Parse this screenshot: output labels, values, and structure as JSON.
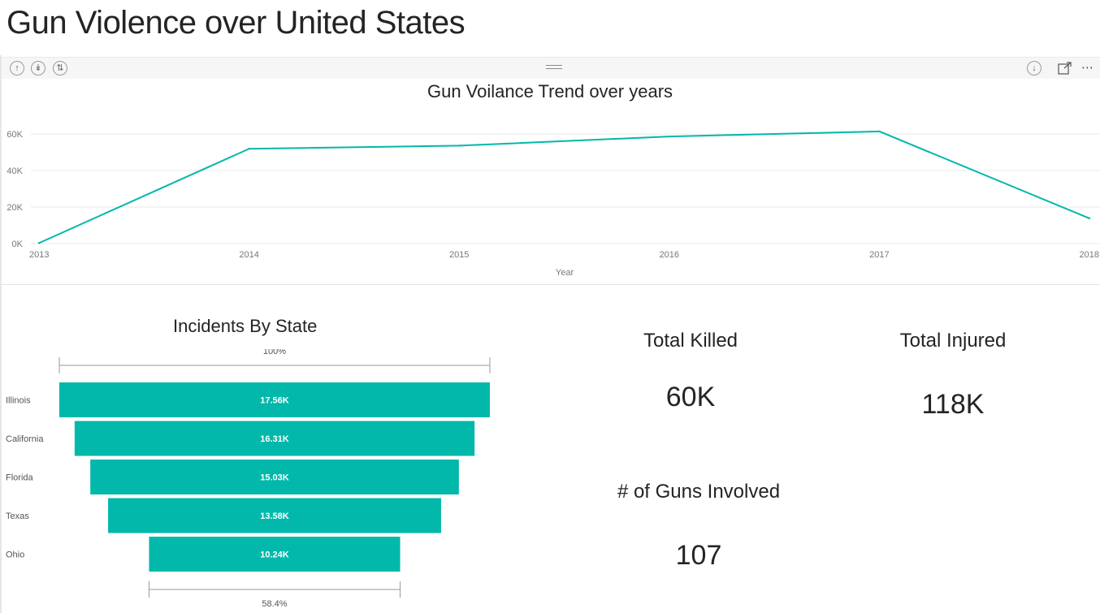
{
  "page": {
    "title": "Gun Violence over United States"
  },
  "visual_header": {
    "icons": [
      "drill-up-icon",
      "drill-down-icon",
      "expand-hierarchy-icon",
      "drag-handle-icon",
      "drill-mode-icon",
      "focus-mode-icon",
      "more-options-icon"
    ]
  },
  "colors": {
    "accent": "#01b8aa",
    "text": "#252423",
    "axis": "#777777",
    "grid": "#e8e8e8"
  },
  "chart_data": [
    {
      "type": "line",
      "title": "Gun Voilance Trend over years",
      "xlabel": "Year",
      "ylabel": "",
      "x": [
        "2013",
        "2014",
        "2015",
        "2016",
        "2017",
        "2018"
      ],
      "series": [
        {
          "values": [
            280,
            51900,
            53600,
            58600,
            61400,
            13800
          ]
        }
      ],
      "ylim": [
        0,
        60000
      ],
      "yticks": [
        "0K",
        "20K",
        "40K",
        "60K"
      ],
      "grid": true
    },
    {
      "type": "bar",
      "title": "Incidents By State",
      "categories": [
        "Illinois",
        "California",
        "Florida",
        "Texas",
        "Ohio"
      ],
      "values": [
        17560,
        16310,
        15030,
        13580,
        10240
      ],
      "value_labels": [
        "17.56K",
        "16.31K",
        "15.03K",
        "13.58K",
        "10.24K"
      ],
      "top_percent_label": "100%",
      "bottom_percent_label": "58.4%"
    }
  ],
  "cards": {
    "killed": {
      "title": "Total Killed",
      "value": "60K"
    },
    "injured": {
      "title": "Total Injured",
      "value": "118K"
    },
    "guns": {
      "title": "# of Guns Involved",
      "value": "107"
    }
  }
}
